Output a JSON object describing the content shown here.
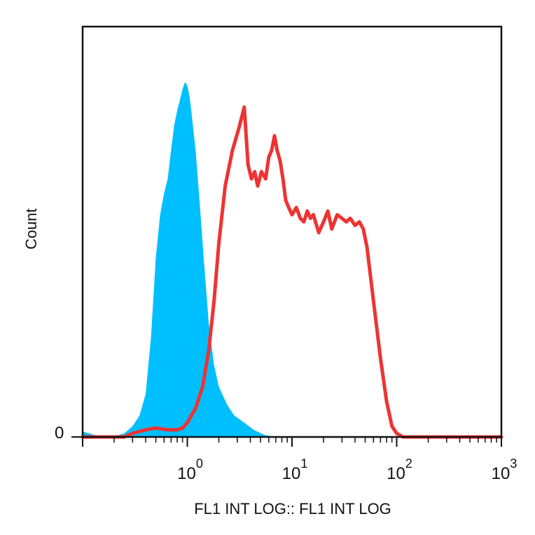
{
  "chart_data": {
    "type": "area",
    "xlabel": "FL1 INT LOG:: FL1 INT LOG",
    "ylabel": "Count",
    "x_scale": "log",
    "xlim": [
      0.1,
      1000
    ],
    "ylim": [
      0,
      100
    ],
    "y_tick_labels": [
      "0"
    ],
    "x_tick_labels": [
      {
        "base": "10",
        "exp": "0",
        "value": 1
      },
      {
        "base": "10",
        "exp": "1",
        "value": 10
      },
      {
        "base": "10",
        "exp": "2",
        "value": 100
      },
      {
        "base": "10",
        "exp": "3",
        "value": 1000
      }
    ],
    "grid": false,
    "legend": "none",
    "series": [
      {
        "style": "filled",
        "color": "#00bfff",
        "x": [
          0.1,
          0.15,
          0.2,
          0.25,
          0.3,
          0.35,
          0.4,
          0.45,
          0.5,
          0.55,
          0.6,
          0.65,
          0.7,
          0.75,
          0.8,
          0.85,
          0.9,
          0.95,
          1.0,
          1.05,
          1.1,
          1.2,
          1.3,
          1.45,
          1.6,
          1.8,
          2.0,
          2.4,
          2.8,
          3.5,
          4.3,
          5.5,
          7.0,
          10.0
        ],
        "y": [
          1.5,
          0,
          0.2,
          1,
          3,
          6,
          12,
          28,
          50,
          62,
          68,
          72,
          80,
          87,
          91,
          94,
          97,
          99,
          98,
          95,
          90,
          80,
          67,
          48,
          32,
          20,
          14,
          9,
          6,
          4,
          2,
          0.5,
          0,
          0
        ]
      },
      {
        "style": "line",
        "color": "#ee3333",
        "x": [
          0.1,
          0.25,
          0.3,
          0.4,
          0.5,
          0.65,
          0.8,
          0.9,
          1.0,
          1.2,
          1.4,
          1.6,
          1.8,
          2.0,
          2.3,
          2.7,
          3.1,
          3.5,
          3.8,
          4.1,
          4.4,
          4.7,
          5.1,
          5.6,
          6.0,
          6.4,
          6.8,
          7.2,
          7.7,
          8.2,
          8.7,
          9.3,
          10.0,
          11.0,
          12.0,
          13.0,
          14.0,
          15.0,
          16.0,
          18.0,
          20.0,
          22.0,
          24.0,
          27.0,
          30.0,
          33.0,
          36.0,
          40.0,
          44.0,
          48.0,
          52.0,
          60.0,
          70.0,
          80.0,
          90.0,
          100.0,
          115.0,
          130.0,
          150.0,
          200.0,
          1000.0
        ],
        "y": [
          0,
          0,
          1,
          2,
          2.5,
          2,
          2,
          2.5,
          4,
          8,
          14,
          24,
          38,
          54,
          70,
          80,
          86,
          92,
          76,
          72,
          74,
          70,
          74,
          72,
          78,
          80,
          84,
          80,
          77,
          72,
          66,
          64,
          62,
          64,
          61,
          60,
          63,
          61,
          62,
          57,
          60,
          63,
          58,
          62,
          61,
          60,
          61,
          59,
          60,
          58,
          53,
          38,
          22,
          10,
          3,
          1,
          0,
          0,
          0,
          0,
          0
        ]
      }
    ]
  }
}
